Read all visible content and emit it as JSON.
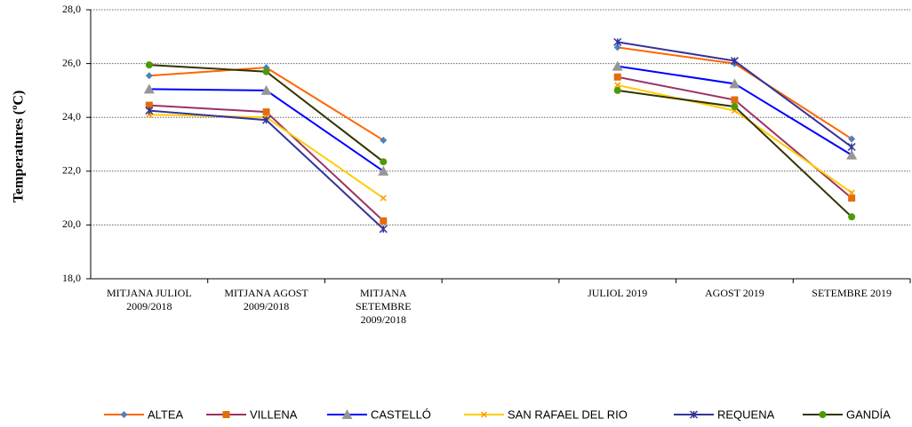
{
  "chart_data": {
    "type": "line",
    "ylabel": "Temperatures  (ºC)",
    "categories": [
      "MITJANA JULIOL 2009/2018",
      "MITJANA AGOST 2009/2018",
      "MITJANA SETEMBRE 2009/2018",
      null,
      "JULIOL 2019",
      "AGOST 2019",
      "SETEMBRE 2019"
    ],
    "series": [
      {
        "name": "ALTEA",
        "color": "#ff6600",
        "marker": "diamond",
        "marker_color": "#4f81bd",
        "values": [
          25.55,
          25.85,
          23.15,
          null,
          26.6,
          26.0,
          23.2
        ]
      },
      {
        "name": "VILLENA",
        "color": "#993366",
        "marker": "square",
        "marker_color": "#e46c0a",
        "values": [
          24.45,
          24.2,
          20.15,
          null,
          25.5,
          24.65,
          21.0
        ]
      },
      {
        "name": "CASTELLÓ",
        "color": "#0000ff",
        "marker": "triangle",
        "marker_color": "#969696",
        "values": [
          25.05,
          25.0,
          22.0,
          null,
          25.9,
          25.25,
          22.6
        ]
      },
      {
        "name": "SAN RAFAEL DEL RIO",
        "color": "#ffcc00",
        "marker": "x",
        "marker_color": "#ff9900",
        "values": [
          24.1,
          24.0,
          21.0,
          null,
          25.2,
          24.25,
          21.2
        ]
      },
      {
        "name": "REQUENA",
        "color": "#333399",
        "marker": "star",
        "marker_color": "#333399",
        "values": [
          24.25,
          23.9,
          19.85,
          null,
          26.8,
          26.1,
          22.9
        ]
      },
      {
        "name": "GANDÍA",
        "color": "#333300",
        "marker": "circle",
        "marker_color": "#4e9a06",
        "values": [
          25.95,
          25.7,
          22.35,
          null,
          25.0,
          24.4,
          20.3
        ]
      }
    ],
    "ylim": [
      18,
      28
    ],
    "yticks": [
      {
        "value": 18,
        "label": "18,0"
      },
      {
        "value": 20,
        "label": "20,0"
      },
      {
        "value": 22,
        "label": "22,0"
      },
      {
        "value": 24,
        "label": "24,0"
      },
      {
        "value": 26,
        "label": "26,0"
      },
      {
        "value": 28,
        "label": "28,0"
      }
    ],
    "grid": true,
    "legend": "bottom"
  }
}
